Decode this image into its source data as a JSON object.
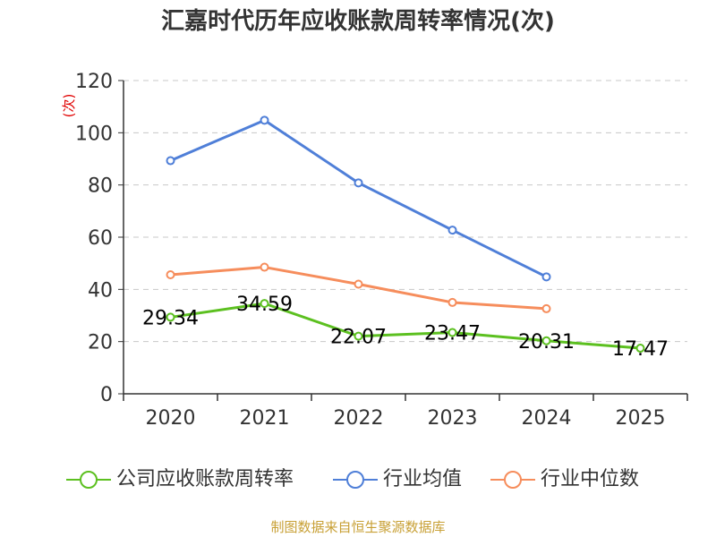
{
  "chart_data": {
    "type": "line",
    "title": "汇嘉时代历年应收账款周转率情况(次)",
    "ylabel": "(次)",
    "xlabel": "",
    "categories": [
      "2020",
      "2021",
      "2022",
      "2023",
      "2024",
      "2025"
    ],
    "ylim": [
      0,
      120
    ],
    "yticks": [
      0,
      20,
      40,
      60,
      80,
      100,
      120
    ],
    "grid": true,
    "legend_position": "bottom",
    "series": [
      {
        "name": "公司应收账款周转率",
        "color": "#5cc020",
        "values": [
          29.34,
          34.59,
          22.07,
          23.47,
          20.31,
          17.47
        ],
        "labels": [
          "29.34",
          "34.59",
          "22.07",
          "23.47",
          "20.31",
          "17.47"
        ]
      },
      {
        "name": "行业均值",
        "color": "#4f7fd8",
        "values": [
          89.3,
          104.8,
          80.8,
          62.7,
          44.8,
          null
        ]
      },
      {
        "name": "行业中位数",
        "color": "#f68d5c",
        "values": [
          45.6,
          48.5,
          42.0,
          35.0,
          32.6,
          null
        ]
      }
    ]
  },
  "source": "制图数据来自恒生聚源数据库"
}
